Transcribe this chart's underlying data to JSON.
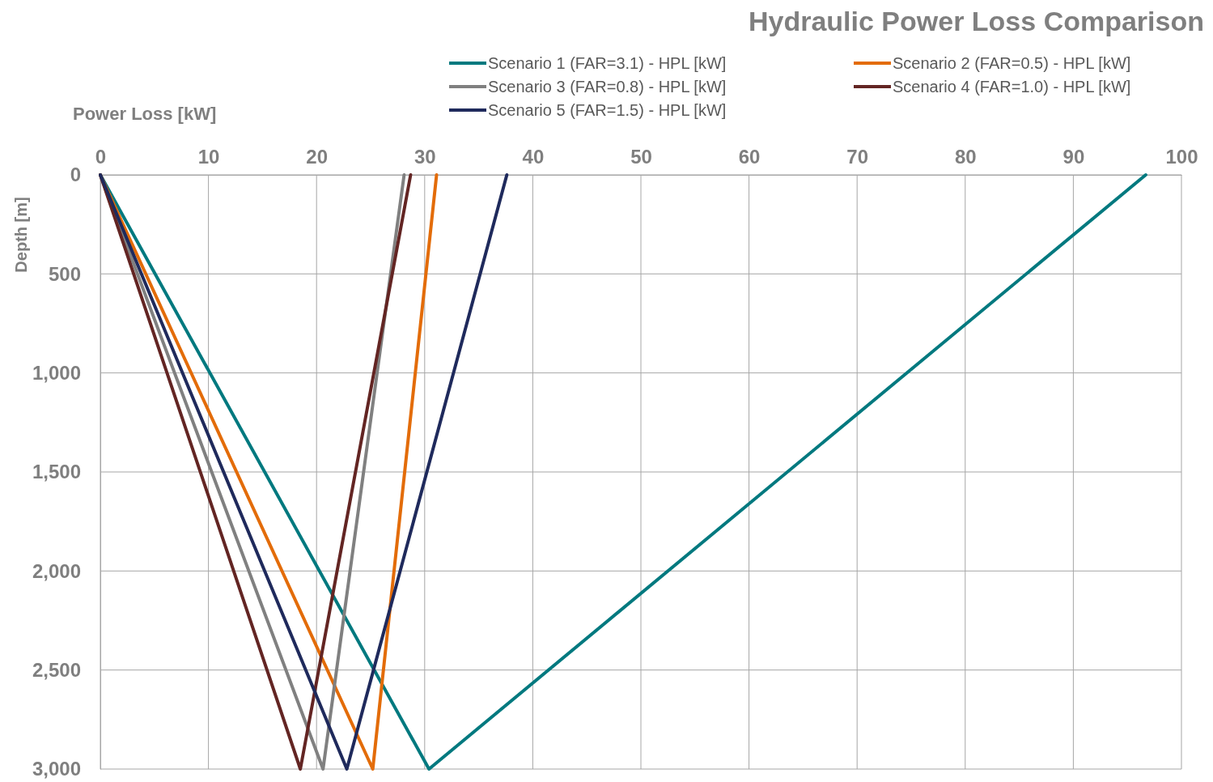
{
  "chart_data": {
    "type": "line",
    "title": "Hydraulic Power Loss Comparison",
    "xlabel": "Power Loss [kW]",
    "ylabel": "Depth [m]",
    "xlim": [
      0,
      100
    ],
    "xticks": [
      0,
      10,
      20,
      30,
      40,
      50,
      60,
      70,
      80,
      90,
      100
    ],
    "ylim": [
      3000,
      0
    ],
    "yticks": [
      0,
      500,
      {
        "value": 1000,
        "label": "1,000"
      },
      {
        "value": 1500,
        "label": "1,500"
      },
      {
        "value": 2000,
        "label": "2,000"
      },
      {
        "value": 2500,
        "label": "2,500"
      },
      {
        "value": 3000,
        "label": "3,000"
      }
    ],
    "grid": true,
    "legend": "top right",
    "marker": "none",
    "line_style": "solid",
    "series": [
      {
        "name": "Scenario 1 (FAR=3.1) - HPL [kW]",
        "color": "#00797f",
        "x": [
          0,
          30.4,
          96.7
        ],
        "values": [
          0,
          3000,
          0
        ]
      },
      {
        "name": "Scenario 2 (FAR=0.5) - HPL [kW]",
        "color": "#e36c09",
        "x": [
          0,
          25.2,
          31.1
        ],
        "values": [
          0,
          3000,
          0
        ]
      },
      {
        "name": "Scenario 3 (FAR=0.8) - HPL [kW]",
        "color": "#808080",
        "x": [
          0,
          20.6,
          28.1
        ],
        "values": [
          0,
          3000,
          0
        ]
      },
      {
        "name": "Scenario 4 (FAR=1.0) - HPL [kW]",
        "color": "#632523",
        "x": [
          0,
          18.5,
          28.7
        ],
        "values": [
          0,
          3000,
          0
        ]
      },
      {
        "name": "Scenario 5 (FAR=1.5) - HPL [kW]",
        "color": "#1f2a5c",
        "x": [
          0,
          22.8,
          37.6
        ],
        "values": [
          0,
          3000,
          0
        ]
      }
    ]
  }
}
